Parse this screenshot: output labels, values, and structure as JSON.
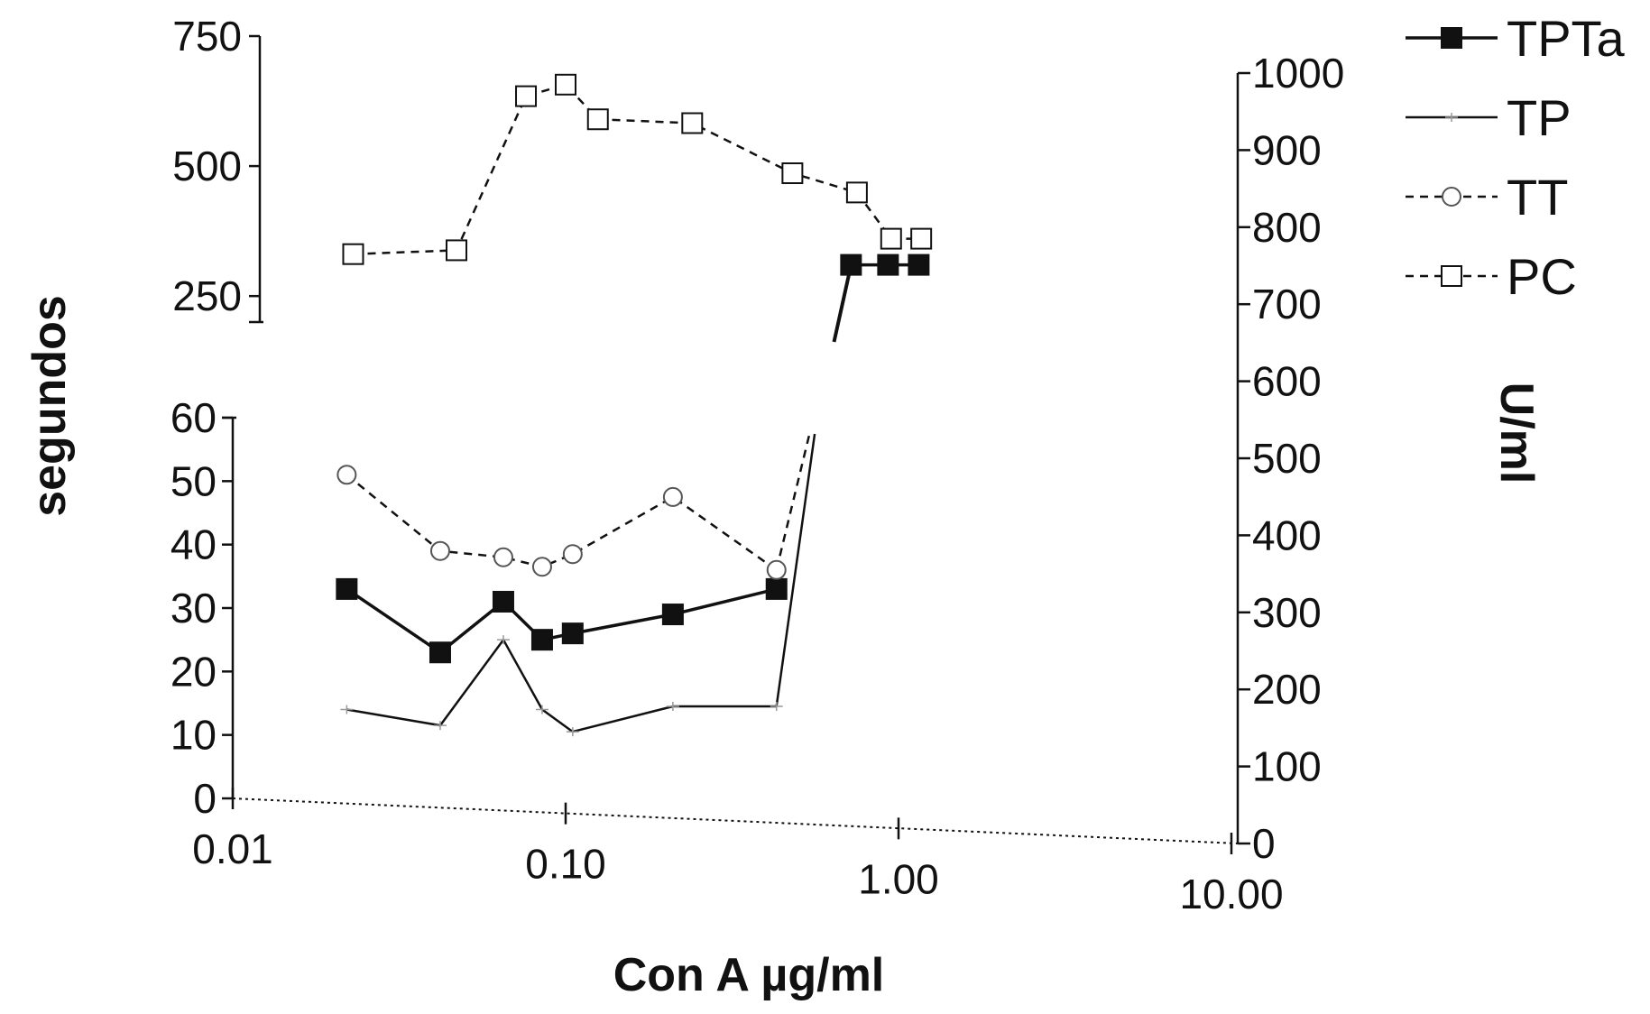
{
  "chart_data": {
    "type": "line",
    "x_scale": "log",
    "xlabel": "Con A µg/ml",
    "ylabel_left": "segundos",
    "ylabel_right": "U/ml",
    "x_ticks": [
      "0.01",
      "0.10",
      "1.00",
      "10.00"
    ],
    "xlim": [
      0.01,
      10
    ],
    "y_left_lower_ticks": [
      "0",
      "10",
      "20",
      "30",
      "40",
      "50",
      "60"
    ],
    "y_left_lower_lim": [
      0,
      60
    ],
    "y_left_upper_ticks": [
      "250",
      "500",
      "750"
    ],
    "y_left_upper_lim": [
      200,
      750
    ],
    "y_right_ticks": [
      "0",
      "100",
      "200",
      "300",
      "400",
      "500",
      "600",
      "700",
      "800",
      "900",
      "1000"
    ],
    "y_right_lim": [
      0,
      1000
    ],
    "grid": false,
    "legend_position": "top-right",
    "series": [
      {
        "name": "TPTa",
        "axis": "left",
        "marker": "filled-square",
        "line": "solid",
        "lower": {
          "x": [
            0.022,
            0.042,
            0.065,
            0.085,
            0.105,
            0.21,
            0.43
          ],
          "y": [
            33,
            23,
            31,
            25,
            26,
            29,
            33
          ]
        },
        "upper": {
          "x": [
            0.72,
            0.93,
            1.15
          ],
          "y": [
            310,
            310,
            310
          ]
        },
        "break_segment_x": [
          0.64,
          0.72
        ]
      },
      {
        "name": "TP",
        "axis": "left",
        "marker": "small-cross",
        "line": "solid",
        "lower": {
          "x": [
            0.022,
            0.042,
            0.065,
            0.085,
            0.105,
            0.21,
            0.43
          ],
          "y": [
            14,
            11.5,
            25,
            14,
            10.5,
            14.5,
            14.5
          ]
        },
        "rise_to_x": 0.56
      },
      {
        "name": "TT",
        "axis": "left",
        "marker": "open-circle",
        "line": "dashed",
        "lower": {
          "x": [
            0.022,
            0.042,
            0.065,
            0.085,
            0.105,
            0.21,
            0.43
          ],
          "y": [
            51,
            39,
            38,
            36.5,
            38.5,
            47.5,
            36
          ]
        },
        "rise_to_x": 0.54
      },
      {
        "name": "PC",
        "axis": "right",
        "marker": "open-square",
        "line": "dashed",
        "x": [
          0.023,
          0.047,
          0.076,
          0.1,
          0.125,
          0.24,
          0.48,
          0.75,
          0.95,
          1.17
        ],
        "y": [
          765,
          770,
          970,
          985,
          940,
          935,
          870,
          845,
          785,
          785
        ]
      }
    ]
  }
}
